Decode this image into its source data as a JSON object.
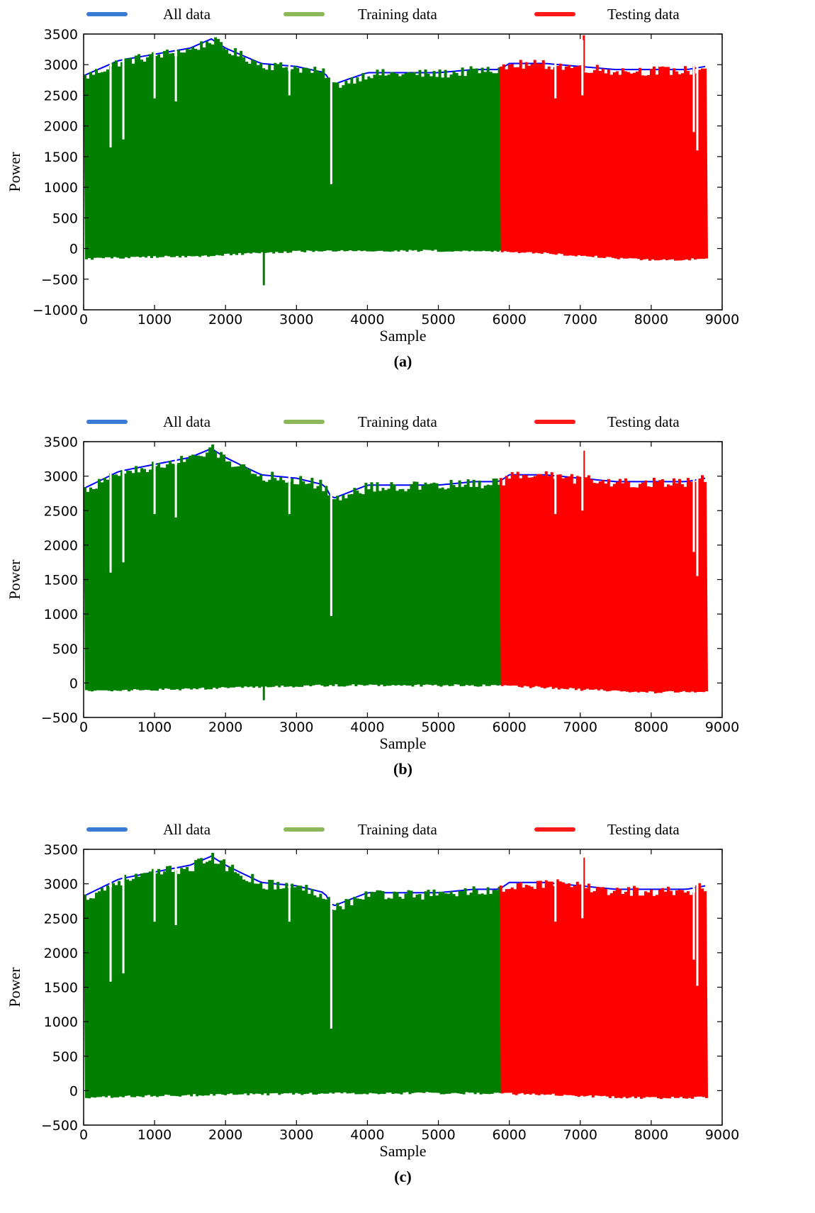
{
  "legend": {
    "entries": [
      {
        "label": "All data",
        "color": "#3a7bd5"
      },
      {
        "label": "Training data",
        "color": "#8db85a"
      },
      {
        "label": "Testing data",
        "color": "#ff1a1a"
      }
    ]
  },
  "colors": {
    "all": "#0000ff",
    "train": "#007f00",
    "test": "#ff0000"
  },
  "chart_data": [
    {
      "type": "area",
      "panel_label": "(a)",
      "xlabel": "Sample",
      "ylabel": "Power",
      "xlim": [
        0,
        9000
      ],
      "ylim": [
        -1000,
        3500
      ],
      "xticks": [
        "0",
        "1000",
        "2000",
        "3000",
        "4000",
        "5000",
        "6000",
        "7000",
        "8000",
        "9000"
      ],
      "yticks": [
        "−1000",
        "−500",
        "0",
        "500",
        "1000",
        "1500",
        "2000",
        "2500",
        "3000",
        "3500"
      ],
      "split_index": 5860,
      "n_samples": 8760,
      "series": [
        {
          "name": "All data",
          "x": [
            0,
            500,
            1000,
            1500,
            1800,
            2000,
            2500,
            3000,
            3400,
            3500,
            4000,
            4500,
            5000,
            5500,
            5860,
            6000,
            6500,
            7000,
            7500,
            8000,
            8500,
            8760
          ],
          "upper": [
            2800,
            3050,
            3150,
            3250,
            3400,
            3250,
            3000,
            2950,
            2850,
            2650,
            2850,
            2850,
            2850,
            2900,
            2900,
            3000,
            3000,
            2950,
            2900,
            2900,
            2900,
            2950
          ]
        },
        {
          "name": "Training data",
          "x": [
            0,
            500,
            1000,
            1500,
            1800,
            2000,
            2500,
            3000,
            3400,
            3500,
            4000,
            4500,
            5000,
            5500,
            5860
          ],
          "upper": [
            2800,
            3050,
            3150,
            3250,
            3400,
            3250,
            3000,
            2950,
            2850,
            2650,
            2850,
            2850,
            2850,
            2900,
            2900
          ],
          "lower": [
            -160,
            -130,
            -120,
            -110,
            -100,
            -80,
            -60,
            -30,
            -25,
            -20,
            -20,
            -20,
            -20,
            -20,
            -30
          ]
        },
        {
          "name": "Testing data",
          "x": [
            5860,
            6000,
            6500,
            7000,
            7500,
            8000,
            8500,
            8760
          ],
          "upper": [
            2900,
            3000,
            3000,
            2950,
            2900,
            2900,
            2900,
            2950
          ],
          "lower": [
            -30,
            -40,
            -60,
            -100,
            -140,
            -170,
            -160,
            -150
          ]
        }
      ],
      "spikes": [
        {
          "x": 380,
          "y": 1650
        },
        {
          "x": 560,
          "y": 1780
        },
        {
          "x": 1000,
          "y": 2450
        },
        {
          "x": 1300,
          "y": 2400
        },
        {
          "x": 2540,
          "y": -600
        },
        {
          "x": 2900,
          "y": 2500
        },
        {
          "x": 3490,
          "y": 1050
        },
        {
          "x": 7050,
          "y": 3480
        },
        {
          "x": 6650,
          "y": 2450
        },
        {
          "x": 7030,
          "y": 2500
        },
        {
          "x": 8650,
          "y": 1600
        },
        {
          "x": 8600,
          "y": 1900
        }
      ]
    },
    {
      "type": "area",
      "panel_label": "(b)",
      "xlabel": "Sample",
      "ylabel": "Power",
      "xlim": [
        0,
        9000
      ],
      "ylim": [
        -500,
        3500
      ],
      "xticks": [
        "0",
        "1000",
        "2000",
        "3000",
        "4000",
        "5000",
        "6000",
        "7000",
        "8000",
        "9000"
      ],
      "yticks": [
        "−500",
        "0",
        "500",
        "1000",
        "1500",
        "2000",
        "2500",
        "3000",
        "3500"
      ],
      "split_index": 5860,
      "n_samples": 8760,
      "series": [
        {
          "name": "All data",
          "x": [
            0,
            500,
            1000,
            1500,
            1800,
            2000,
            2500,
            3000,
            3400,
            3500,
            4000,
            4500,
            5000,
            5500,
            5860,
            6000,
            6500,
            7000,
            7500,
            8000,
            8500,
            8760
          ],
          "upper": [
            2800,
            3050,
            3150,
            3250,
            3380,
            3250,
            3000,
            2950,
            2850,
            2650,
            2850,
            2850,
            2850,
            2900,
            2900,
            3000,
            3000,
            2950,
            2900,
            2900,
            2900,
            2950
          ]
        },
        {
          "name": "Training data",
          "x": [
            0,
            500,
            1000,
            1500,
            1800,
            2000,
            2500,
            3000,
            3400,
            3500,
            4000,
            4500,
            5000,
            5500,
            5860
          ],
          "upper": [
            2800,
            3050,
            3150,
            3250,
            3380,
            3250,
            3000,
            2950,
            2850,
            2650,
            2850,
            2850,
            2850,
            2900,
            2900
          ],
          "lower": [
            -100,
            -90,
            -80,
            -70,
            -60,
            -50,
            -40,
            -30,
            -20,
            -20,
            -20,
            -20,
            -20,
            -20,
            -20
          ]
        },
        {
          "name": "Testing data",
          "x": [
            5860,
            6000,
            6500,
            7000,
            7500,
            8000,
            8500,
            8760
          ],
          "upper": [
            2900,
            3000,
            3000,
            2950,
            2900,
            2900,
            2900,
            2950
          ],
          "lower": [
            -20,
            -30,
            -50,
            -80,
            -100,
            -120,
            -110,
            -100
          ]
        }
      ],
      "spikes": [
        {
          "x": 380,
          "y": 1600
        },
        {
          "x": 560,
          "y": 1750
        },
        {
          "x": 1000,
          "y": 2450
        },
        {
          "x": 1300,
          "y": 2400
        },
        {
          "x": 2540,
          "y": -250
        },
        {
          "x": 2900,
          "y": 2450
        },
        {
          "x": 3490,
          "y": 970
        },
        {
          "x": 7050,
          "y": 3370
        },
        {
          "x": 6650,
          "y": 2450
        },
        {
          "x": 7030,
          "y": 2500
        },
        {
          "x": 8650,
          "y": 1550
        },
        {
          "x": 8600,
          "y": 1900
        }
      ]
    },
    {
      "type": "area",
      "panel_label": "(c)",
      "xlabel": "Sample",
      "ylabel": "Power",
      "xlim": [
        0,
        9000
      ],
      "ylim": [
        -500,
        3500
      ],
      "xticks": [
        "0",
        "1000",
        "2000",
        "3000",
        "4000",
        "5000",
        "6000",
        "7000",
        "8000",
        "9000"
      ],
      "yticks": [
        "−500",
        "0",
        "500",
        "1000",
        "1500",
        "2000",
        "2500",
        "3000",
        "3500"
      ],
      "split_index": 5860,
      "n_samples": 8760,
      "series": [
        {
          "name": "All data",
          "x": [
            0,
            500,
            1000,
            1500,
            1800,
            2000,
            2500,
            3000,
            3400,
            3500,
            4000,
            4500,
            5000,
            5500,
            5860,
            6000,
            6500,
            7000,
            7500,
            8000,
            8500,
            8760
          ],
          "upper": [
            2800,
            3050,
            3150,
            3250,
            3380,
            3250,
            3000,
            2950,
            2850,
            2650,
            2850,
            2850,
            2850,
            2900,
            2900,
            3000,
            3000,
            2950,
            2900,
            2900,
            2900,
            2950
          ]
        },
        {
          "name": "Training data",
          "x": [
            0,
            500,
            1000,
            1500,
            1800,
            2000,
            2500,
            3000,
            3400,
            3500,
            4000,
            4500,
            5000,
            5500,
            5860
          ],
          "upper": [
            2800,
            3050,
            3150,
            3250,
            3380,
            3250,
            3000,
            2950,
            2850,
            2650,
            2850,
            2850,
            2850,
            2900,
            2900
          ],
          "lower": [
            -80,
            -70,
            -60,
            -50,
            -45,
            -40,
            -35,
            -30,
            -30,
            -20,
            -20,
            -20,
            -20,
            -20,
            -20
          ]
        },
        {
          "name": "Testing data",
          "x": [
            5860,
            6000,
            6500,
            7000,
            7500,
            8000,
            8500,
            8760
          ],
          "upper": [
            2900,
            3000,
            3000,
            2950,
            2900,
            2900,
            2900,
            2950
          ],
          "lower": [
            -20,
            -30,
            -40,
            -60,
            -80,
            -90,
            -90,
            -80
          ]
        }
      ],
      "spikes": [
        {
          "x": 380,
          "y": 1580
        },
        {
          "x": 560,
          "y": 1700
        },
        {
          "x": 1000,
          "y": 2450
        },
        {
          "x": 1300,
          "y": 2400
        },
        {
          "x": 2900,
          "y": 2450
        },
        {
          "x": 3490,
          "y": 900
        },
        {
          "x": 7050,
          "y": 3380
        },
        {
          "x": 6650,
          "y": 2450
        },
        {
          "x": 7030,
          "y": 2500
        },
        {
          "x": 8650,
          "y": 1520
        },
        {
          "x": 8600,
          "y": 1900
        }
      ]
    }
  ]
}
